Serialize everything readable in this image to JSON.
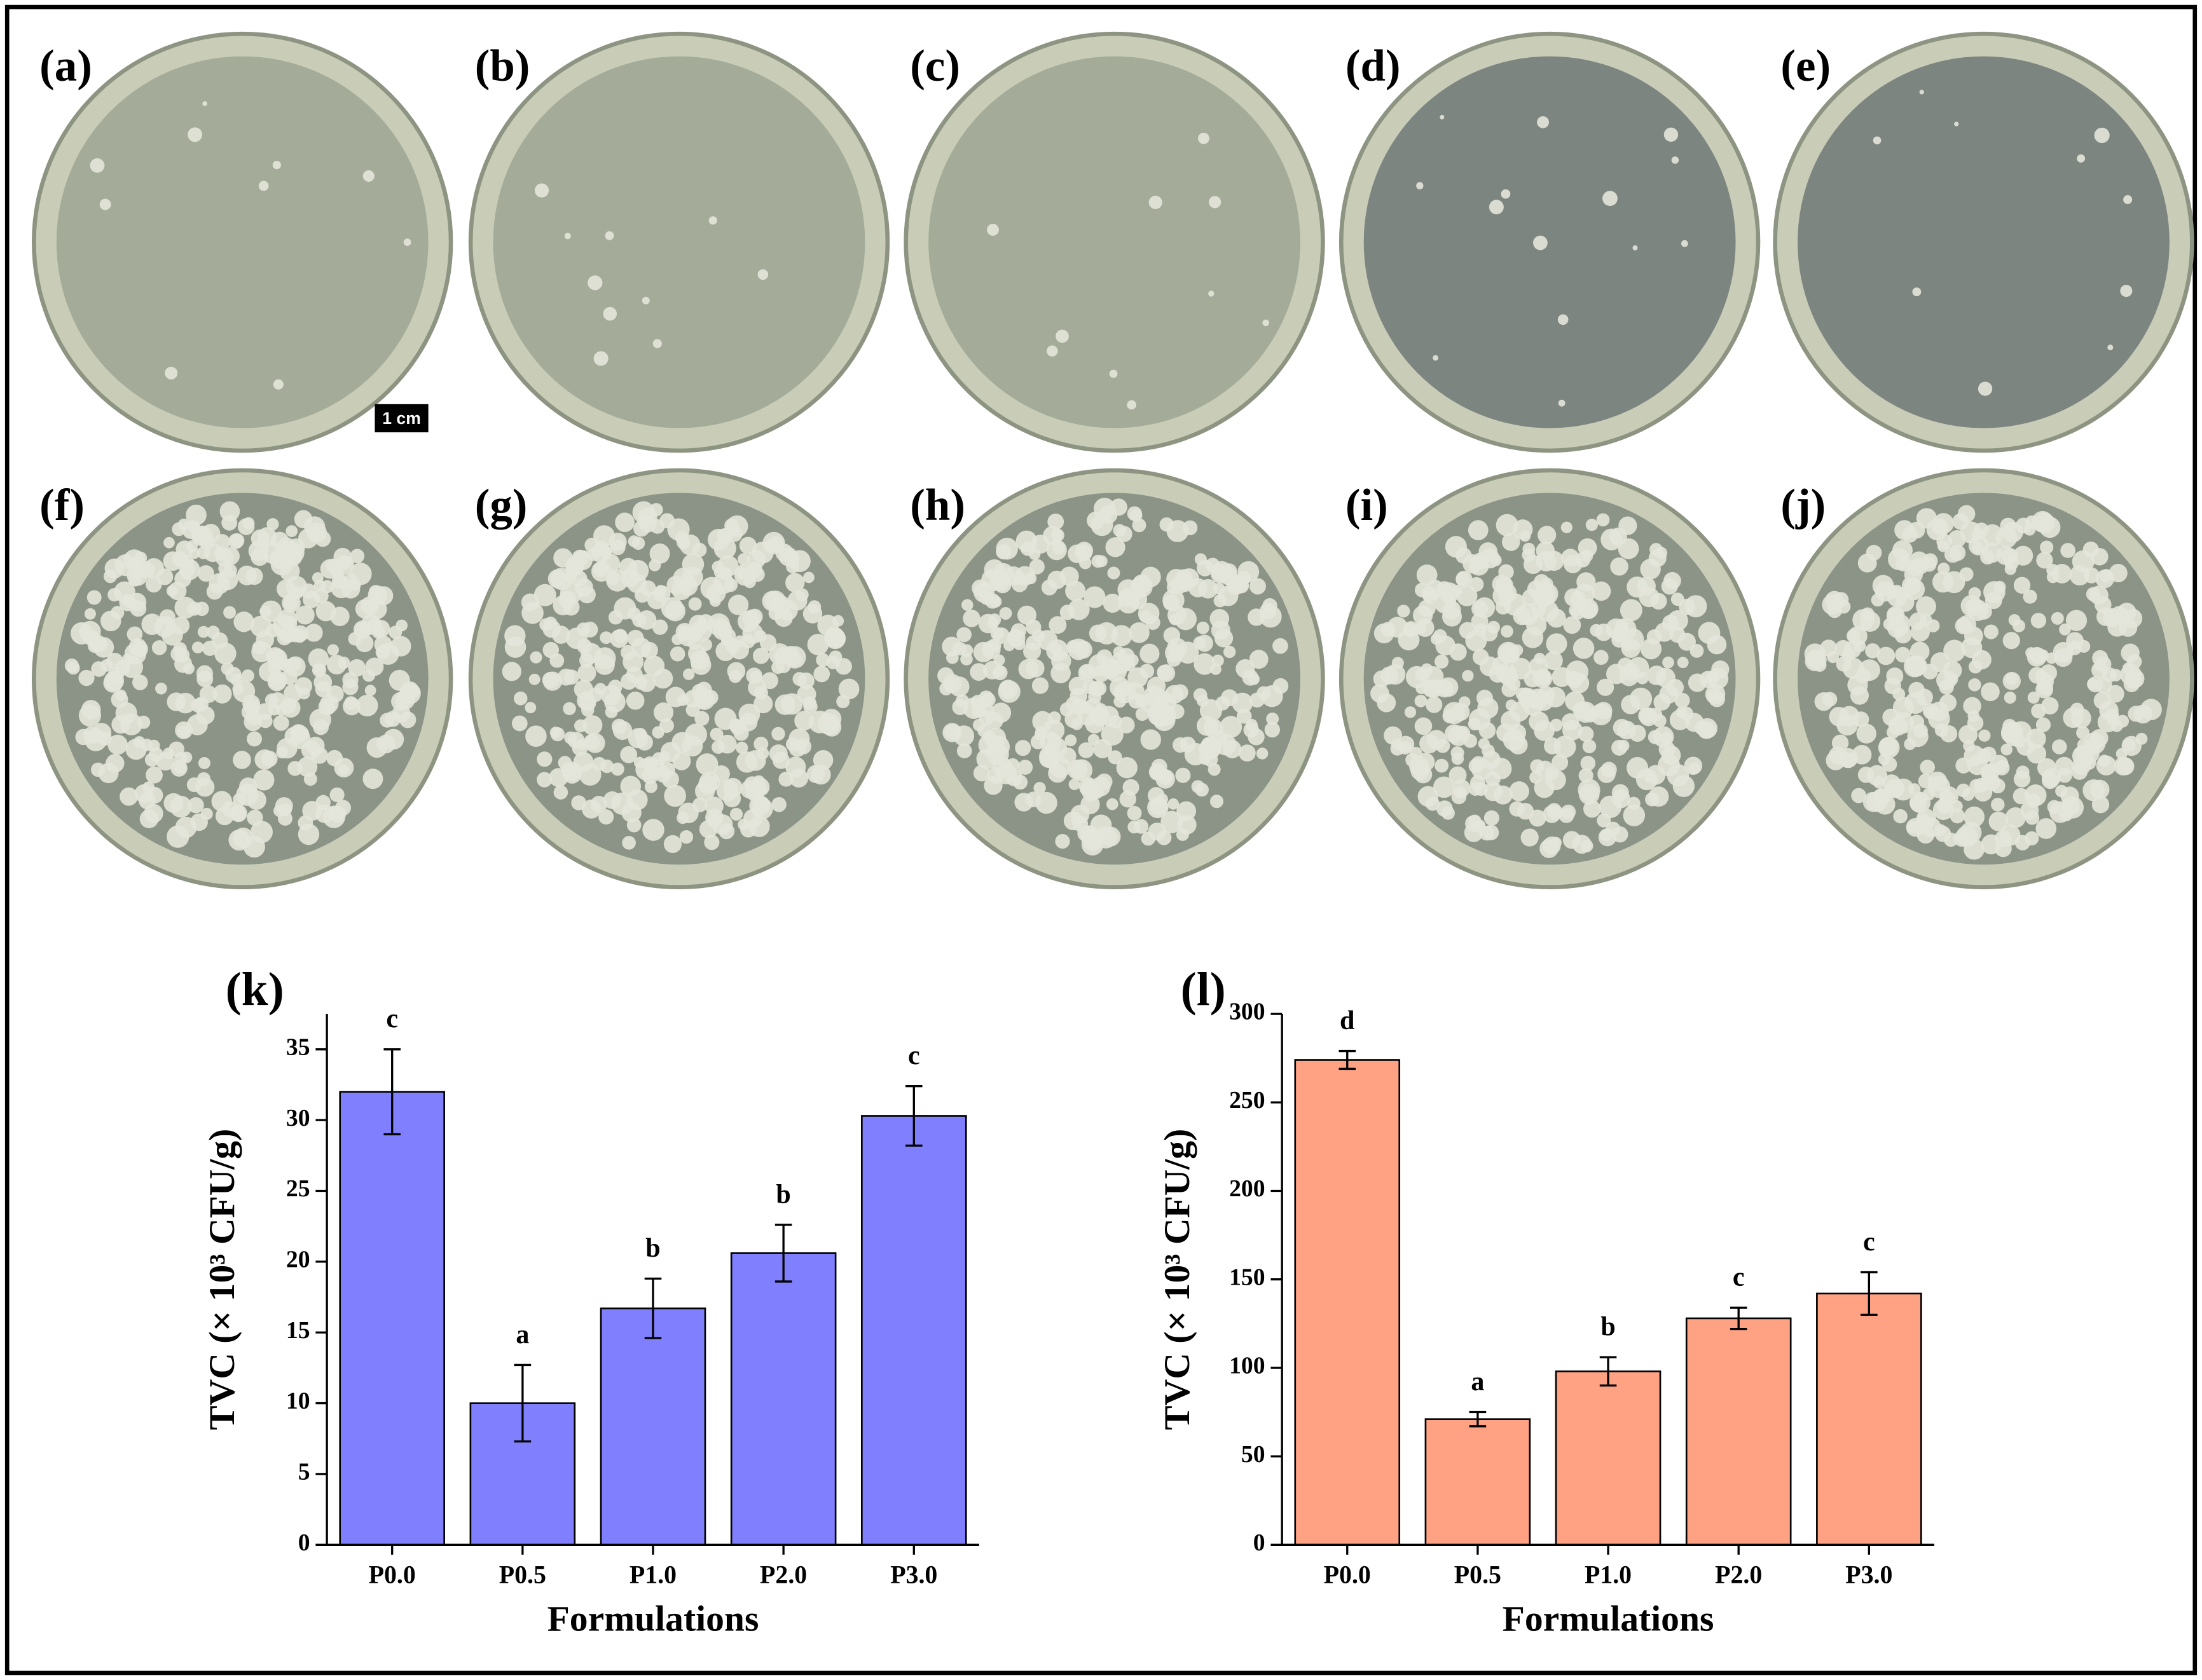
{
  "panels": [
    "(a)",
    "(b)",
    "(c)",
    "(d)",
    "(e)",
    "(f)",
    "(g)",
    "(h)",
    "(i)",
    "(j)"
  ],
  "scale_bar": "1 cm",
  "chart_data": [
    {
      "type": "bar",
      "panel_label": "(k)",
      "ylabel": "TVC (× 10³ CFU/g)",
      "xlabel": "Formulations",
      "categories": [
        "P0.0",
        "P0.5",
        "P1.0",
        "P2.0",
        "P3.0"
      ],
      "values": [
        32,
        10,
        16.7,
        20.6,
        30.3
      ],
      "errors": [
        3,
        2.7,
        2.1,
        2,
        2.1
      ],
      "annotations": [
        "c",
        "a",
        "b",
        "b",
        "c"
      ],
      "color": "#8080ff",
      "ylim": [
        0,
        37.5
      ],
      "yticks": [
        0,
        5,
        10,
        15,
        20,
        25,
        30,
        35
      ]
    },
    {
      "type": "bar",
      "panel_label": "(l)",
      "ylabel": "TVC (× 10³ CFU/g)",
      "xlabel": "Formulations",
      "categories": [
        "P0.0",
        "P0.5",
        "P1.0",
        "P2.0",
        "P3.0"
      ],
      "values": [
        274,
        71,
        98,
        128,
        142
      ],
      "errors": [
        5,
        4,
        8,
        6,
        12
      ],
      "annotations": [
        "d",
        "a",
        "b",
        "c",
        "c"
      ],
      "color": "#ffa284",
      "ylim": [
        0,
        300
      ],
      "yticks": [
        0,
        50,
        100,
        150,
        200,
        250,
        300
      ]
    }
  ]
}
